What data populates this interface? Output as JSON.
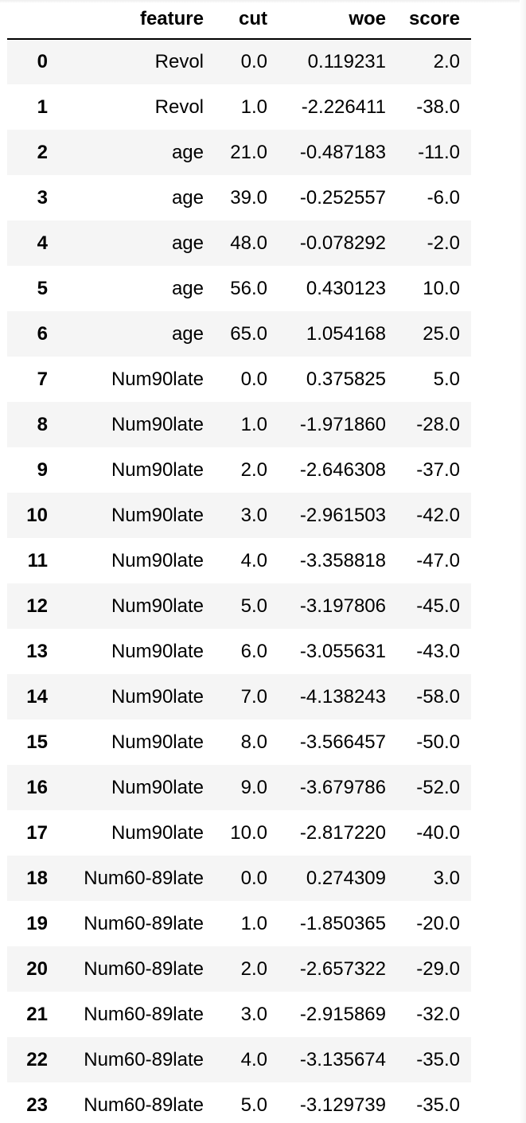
{
  "table": {
    "columns": [
      "",
      "feature",
      "cut",
      "woe",
      "score"
    ],
    "rows": [
      {
        "index": "0",
        "feature": "Revol",
        "cut": "0.0",
        "woe": "0.119231",
        "score": "2.0"
      },
      {
        "index": "1",
        "feature": "Revol",
        "cut": "1.0",
        "woe": "-2.226411",
        "score": "-38.0"
      },
      {
        "index": "2",
        "feature": "age",
        "cut": "21.0",
        "woe": "-0.487183",
        "score": "-11.0"
      },
      {
        "index": "3",
        "feature": "age",
        "cut": "39.0",
        "woe": "-0.252557",
        "score": "-6.0"
      },
      {
        "index": "4",
        "feature": "age",
        "cut": "48.0",
        "woe": "-0.078292",
        "score": "-2.0"
      },
      {
        "index": "5",
        "feature": "age",
        "cut": "56.0",
        "woe": "0.430123",
        "score": "10.0"
      },
      {
        "index": "6",
        "feature": "age",
        "cut": "65.0",
        "woe": "1.054168",
        "score": "25.0"
      },
      {
        "index": "7",
        "feature": "Num90late",
        "cut": "0.0",
        "woe": "0.375825",
        "score": "5.0"
      },
      {
        "index": "8",
        "feature": "Num90late",
        "cut": "1.0",
        "woe": "-1.971860",
        "score": "-28.0"
      },
      {
        "index": "9",
        "feature": "Num90late",
        "cut": "2.0",
        "woe": "-2.646308",
        "score": "-37.0"
      },
      {
        "index": "10",
        "feature": "Num90late",
        "cut": "3.0",
        "woe": "-2.961503",
        "score": "-42.0"
      },
      {
        "index": "11",
        "feature": "Num90late",
        "cut": "4.0",
        "woe": "-3.358818",
        "score": "-47.0"
      },
      {
        "index": "12",
        "feature": "Num90late",
        "cut": "5.0",
        "woe": "-3.197806",
        "score": "-45.0"
      },
      {
        "index": "13",
        "feature": "Num90late",
        "cut": "6.0",
        "woe": "-3.055631",
        "score": "-43.0"
      },
      {
        "index": "14",
        "feature": "Num90late",
        "cut": "7.0",
        "woe": "-4.138243",
        "score": "-58.0"
      },
      {
        "index": "15",
        "feature": "Num90late",
        "cut": "8.0",
        "woe": "-3.566457",
        "score": "-50.0"
      },
      {
        "index": "16",
        "feature": "Num90late",
        "cut": "9.0",
        "woe": "-3.679786",
        "score": "-52.0"
      },
      {
        "index": "17",
        "feature": "Num90late",
        "cut": "10.0",
        "woe": "-2.817220",
        "score": "-40.0"
      },
      {
        "index": "18",
        "feature": "Num60-89late",
        "cut": "0.0",
        "woe": "0.274309",
        "score": "3.0"
      },
      {
        "index": "19",
        "feature": "Num60-89late",
        "cut": "1.0",
        "woe": "-1.850365",
        "score": "-20.0"
      },
      {
        "index": "20",
        "feature": "Num60-89late",
        "cut": "2.0",
        "woe": "-2.657322",
        "score": "-29.0"
      },
      {
        "index": "21",
        "feature": "Num60-89late",
        "cut": "3.0",
        "woe": "-2.915869",
        "score": "-32.0"
      },
      {
        "index": "22",
        "feature": "Num60-89late",
        "cut": "4.0",
        "woe": "-3.135674",
        "score": "-35.0"
      },
      {
        "index": "23",
        "feature": "Num60-89late",
        "cut": "5.0",
        "woe": "-3.129739",
        "score": "-35.0"
      }
    ]
  },
  "colors": {
    "stripe": "#f5f5f5",
    "background": "#ffffff",
    "header_rule": "#000000"
  }
}
